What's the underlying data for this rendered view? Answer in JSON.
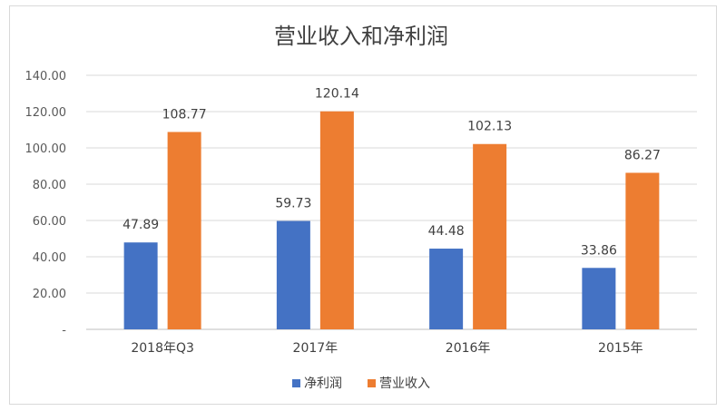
{
  "chart_data": {
    "type": "bar",
    "title": "营业收入和净利润",
    "categories": [
      "2018年Q3",
      "2017年",
      "2016年",
      "2015年"
    ],
    "series": [
      {
        "name": "净利润",
        "color": "#4472c4",
        "values": [
          47.89,
          59.73,
          44.48,
          33.86
        ],
        "labels": [
          "47.89",
          "59.73",
          "44.48",
          "33.86"
        ]
      },
      {
        "name": "营业收入",
        "color": "#ed7d31",
        "values": [
          108.77,
          120.14,
          102.13,
          86.27
        ],
        "labels": [
          "108.77",
          "120.14",
          "102.13",
          "86.27"
        ]
      }
    ],
    "ylim": [
      0,
      140
    ],
    "yticks": [
      "-",
      "20.00",
      "40.00",
      "60.00",
      "80.00",
      "100.00",
      "120.00",
      "140.00"
    ],
    "grid": true,
    "legend": "bottom-center"
  }
}
